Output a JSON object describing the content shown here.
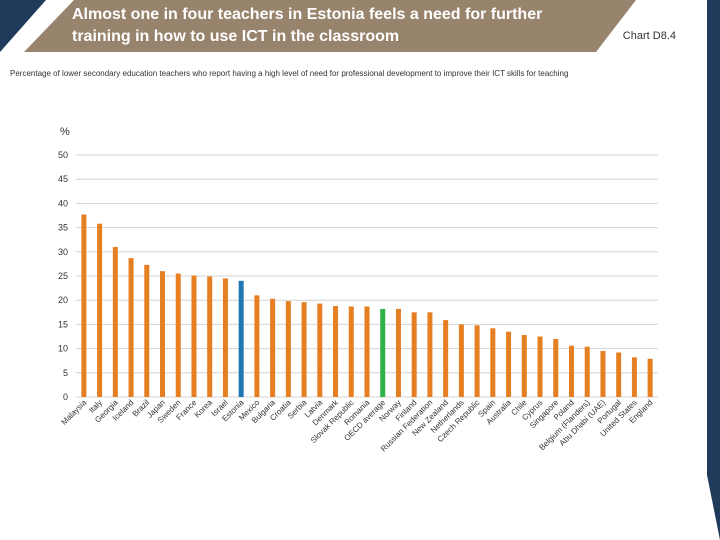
{
  "header": {
    "title": "Almost one in four teachers in Estonia feels a need for further training in how to use ICT in the classroom",
    "chart_label": "Chart D8.4"
  },
  "subtitle": "Percentage of lower secondary education teachers who report having a high level of need for professional development to improve their ICT skills for teaching",
  "colors": {
    "bar": "#e67e22",
    "highlight_estonia": "#1f77b4",
    "highlight_oecd": "#2db24a",
    "grid": "#d4d4d4",
    "title_band": "#98846d",
    "dark_band": "#1f3a5a"
  },
  "chart_data": {
    "type": "bar",
    "title": "Almost one in four teachers in Estonia feels a need for further training in how to use ICT in the classroom",
    "subtitle": "Percentage of lower secondary education teachers who report having a high level of need for professional development to improve their ICT skills for teaching",
    "ylabel": "%",
    "ylim": [
      0,
      50
    ],
    "yticks": [
      0,
      5,
      10,
      15,
      20,
      25,
      30,
      35,
      40,
      45,
      50
    ],
    "grid": true,
    "categories": [
      "Malaysia",
      "Italy",
      "Georgia",
      "Iceland",
      "Brazil",
      "Japan",
      "Sweden",
      "France",
      "Korea",
      "Israel",
      "Estonia",
      "Mexico",
      "Bulgaria",
      "Croatia",
      "Serbia",
      "Latvia",
      "Denmark",
      "Slovak Republic",
      "Romania",
      "OECD average",
      "Norway",
      "Finland",
      "Russian Federation",
      "New Zealand",
      "Netherlands",
      "Czech Republic",
      "Spain",
      "Australia",
      "Chile",
      "Cyprus",
      "Singapore",
      "Poland",
      "Belgium (Flanders)",
      "Abu Dhabi (UAE)",
      "Portugal",
      "United States",
      "England"
    ],
    "values": [
      37.7,
      35.8,
      31.0,
      28.7,
      27.3,
      26.0,
      25.5,
      25.1,
      24.9,
      24.5,
      24.0,
      21.0,
      20.3,
      19.8,
      19.6,
      19.3,
      18.8,
      18.7,
      18.7,
      18.2,
      18.2,
      17.5,
      17.5,
      15.9,
      15.0,
      14.8,
      14.2,
      13.5,
      12.8,
      12.5,
      12.0,
      10.6,
      10.4,
      9.5,
      9.2,
      8.2,
      7.9
    ],
    "highlight": {
      "Estonia": "#1f77b4",
      "OECD average": "#2db24a"
    }
  }
}
